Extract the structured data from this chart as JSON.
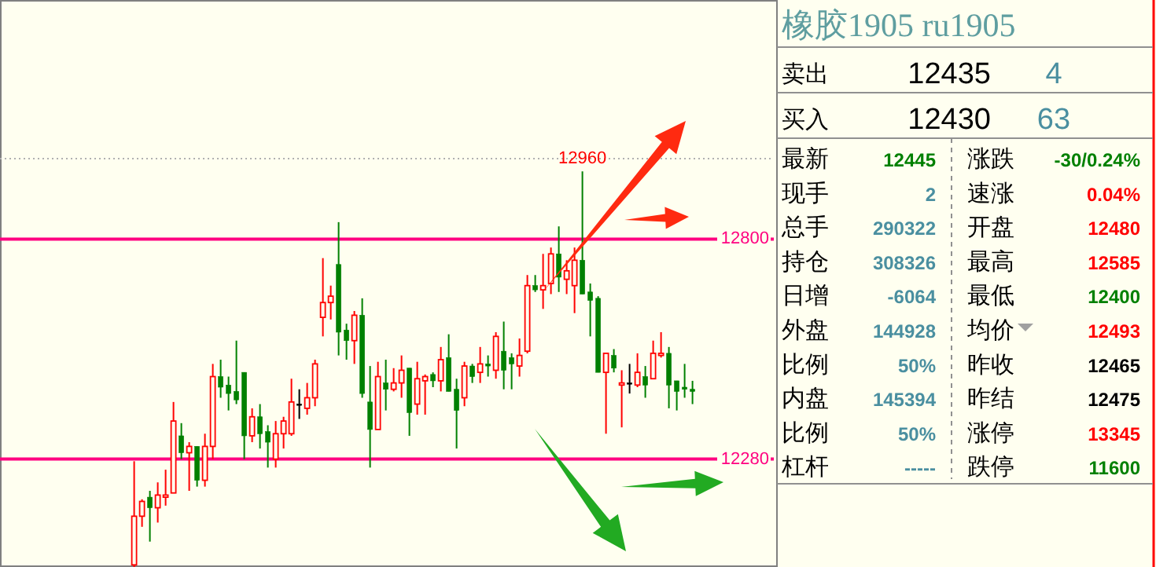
{
  "chart_data": [
    {
      "type": "candlestick",
      "categories": [
        null,
        null,
        null,
        null,
        null,
        null,
        null,
        null,
        null,
        null,
        null,
        null,
        null,
        null,
        null,
        null,
        null,
        null,
        null,
        null,
        null,
        null,
        null,
        null,
        null,
        null,
        null,
        null,
        null,
        null,
        null,
        null,
        null,
        null,
        null,
        null,
        null,
        null,
        null,
        null,
        null,
        null,
        null,
        null,
        null,
        null,
        null,
        null,
        null,
        null,
        null,
        null,
        null,
        null,
        null,
        null,
        null,
        null,
        null,
        null,
        null,
        null,
        null,
        null,
        null,
        null,
        null,
        null,
        null,
        null,
        null,
        null
      ],
      "ohlc": [
        [
          12030,
          12275,
          12025,
          12145
        ],
        [
          12145,
          12185,
          12120,
          12180
        ],
        [
          12190,
          12205,
          12085,
          12165
        ],
        [
          12165,
          12225,
          12130,
          12195
        ],
        [
          12190,
          12255,
          12170,
          12195
        ],
        [
          12200,
          12415,
          12200,
          12370
        ],
        [
          12335,
          12365,
          12280,
          12295
        ],
        [
          12295,
          12320,
          12205,
          12310
        ],
        [
          12310,
          12310,
          12215,
          12230
        ],
        [
          12230,
          12340,
          12215,
          12310
        ],
        [
          12310,
          12505,
          12280,
          12475
        ],
        [
          12475,
          12515,
          12425,
          12450
        ],
        [
          12455,
          12475,
          12395,
          12435
        ],
        [
          12440,
          12560,
          12410,
          12420
        ],
        [
          12485,
          12485,
          12280,
          12335
        ],
        [
          12335,
          12400,
          12320,
          12380
        ],
        [
          12380,
          12410,
          12305,
          12340
        ],
        [
          12345,
          12360,
          12260,
          12320
        ],
        [
          12280,
          12370,
          12260,
          12340
        ],
        [
          12340,
          12380,
          12305,
          12370
        ],
        [
          12340,
          12470,
          12335,
          12415
        ],
        [
          12410,
          12445,
          12375,
          12410
        ],
        [
          12400,
          12460,
          12385,
          12425
        ],
        [
          12425,
          12515,
          12405,
          12505
        ],
        [
          12615,
          12755,
          12570,
          12650
        ],
        [
          12650,
          12690,
          12610,
          12665
        ],
        [
          12740,
          12840,
          12525,
          12580
        ],
        [
          12585,
          12600,
          12515,
          12560
        ],
        [
          12560,
          12630,
          12505,
          12620
        ],
        [
          12620,
          12660,
          12425,
          12435
        ],
        [
          12415,
          12500,
          12260,
          12350
        ],
        [
          12350,
          12510,
          12350,
          12475
        ],
        [
          12460,
          12515,
          12395,
          12445
        ],
        [
          12445,
          12495,
          12440,
          12460
        ],
        [
          12460,
          12525,
          12425,
          12490
        ],
        [
          12495,
          12495,
          12335,
          12390
        ],
        [
          12410,
          12510,
          12385,
          12470
        ],
        [
          12465,
          12480,
          12385,
          12475
        ],
        [
          12480,
          12485,
          12450,
          12465
        ],
        [
          12465,
          12545,
          12440,
          12515
        ],
        [
          12520,
          12575,
          12440,
          12440
        ],
        [
          12445,
          12470,
          12305,
          12395
        ],
        [
          12425,
          12510,
          12405,
          12500
        ],
        [
          12500,
          12505,
          12460,
          12475
        ],
        [
          12485,
          12545,
          12460,
          12505
        ],
        [
          12505,
          12525,
          12475,
          12500
        ],
        [
          12490,
          12580,
          12470,
          12570
        ],
        [
          12535,
          12605,
          12445,
          12490
        ],
        [
          12520,
          12530,
          12445,
          12505
        ],
        [
          12500,
          12565,
          12475,
          12525
        ],
        [
          12535,
          12715,
          12530,
          12690
        ],
        [
          12690,
          12715,
          12675,
          12680
        ],
        [
          12680,
          12765,
          12635,
          12690
        ],
        [
          12695,
          12780,
          12670,
          12765
        ],
        [
          12765,
          12830,
          12675,
          12710
        ],
        [
          12705,
          12750,
          12670,
          12725
        ],
        [
          12690,
          12780,
          12625,
          12750
        ],
        [
          12750,
          12960,
          12670,
          12670
        ],
        [
          12675,
          12695,
          12570,
          12655
        ],
        [
          12660,
          12665,
          12485,
          12485
        ],
        [
          12485,
          12530,
          12340,
          12530
        ],
        [
          12525,
          12540,
          12485,
          12495
        ],
        [
          12455,
          12490,
          12355,
          12460
        ],
        [
          12460,
          12505,
          12435,
          12460
        ],
        [
          12455,
          12530,
          12450,
          12485
        ],
        [
          12475,
          12500,
          12425,
          12455
        ],
        [
          12470,
          12560,
          12470,
          12530
        ],
        [
          12525,
          12580,
          12520,
          12530
        ],
        [
          12530,
          12545,
          12400,
          12455
        ],
        [
          12465,
          12465,
          12395,
          12440
        ],
        [
          12450,
          12505,
          12425,
          12445
        ],
        [
          12445,
          12465,
          12410,
          12440
        ]
      ],
      "colors": [
        "#ff0000",
        "#ff0000",
        "#008000",
        "#ff0000",
        "#ff0000",
        "#ff0000",
        "#008000",
        "#ff0000",
        "#008000",
        "#ff0000",
        "#ff0000",
        "#008000",
        "#008000",
        "#008000",
        "#008000",
        "#ff0000",
        "#008000",
        "#008000",
        "#ff0000",
        "#ff0000",
        "#ff0000",
        "#000000",
        "#ff0000",
        "#ff0000",
        "#ff0000",
        "#ff0000",
        "#008000",
        "#008000",
        "#ff0000",
        "#008000",
        "#008000",
        "#ff0000",
        "#008000",
        "#ff0000",
        "#ff0000",
        "#008000",
        "#ff0000",
        "#ff0000",
        "#008000",
        "#ff0000",
        "#008000",
        "#008000",
        "#ff0000",
        "#008000",
        "#ff0000",
        "#008000",
        "#ff0000",
        "#008000",
        "#008000",
        "#ff0000",
        "#ff0000",
        "#008000",
        "#ff0000",
        "#ff0000",
        "#008000",
        "#ff0000",
        "#ff0000",
        "#008000",
        "#008000",
        "#008000",
        "#ff0000",
        "#008000",
        "#ff0000",
        "#000000",
        "#ff0000",
        "#008000",
        "#ff0000",
        "#ff0000",
        "#008000",
        "#008000",
        "#008000",
        "#008000"
      ],
      "ylim": [
        12025,
        13365
      ],
      "yticks": [
        12280,
        12800
      ],
      "ref_lines": [
        {
          "axis": "y",
          "value": 12800,
          "label": null,
          "color": "#ff0080"
        },
        {
          "axis": "y",
          "value": 12280,
          "label": null,
          "color": "#ff0080"
        },
        {
          "axis": "y",
          "value": 12990,
          "label": null,
          "color": "#b0b0b0",
          "line_style": "dotted"
        }
      ],
      "annotations": [
        {
          "text": "12960",
          "y": 12960
        }
      ]
    },
    {
      "type": "other",
      "title": "橡胶1905 ru1905",
      "annotations": [
        "卖出",
        "12435",
        "4",
        "买入",
        "12430",
        "63",
        "最新",
        "12445",
        "涨跌",
        "-30/0.24%",
        "现手",
        "2",
        "速涨",
        "0.04%",
        "总手",
        "290322",
        "开盘",
        "12480",
        "持仓",
        "308326",
        "最高",
        "12585",
        "日增",
        "-6064",
        "最低",
        "12400",
        "外盘",
        "144928",
        "均价",
        "12493",
        "比例",
        "50%",
        "昨收",
        "12465",
        "内盘",
        "145394",
        "昨结",
        "12475",
        "比例",
        "50%",
        "涨停",
        "13345",
        "杠杆",
        "-----",
        "跌停",
        "11600"
      ]
    }
  ]
}
